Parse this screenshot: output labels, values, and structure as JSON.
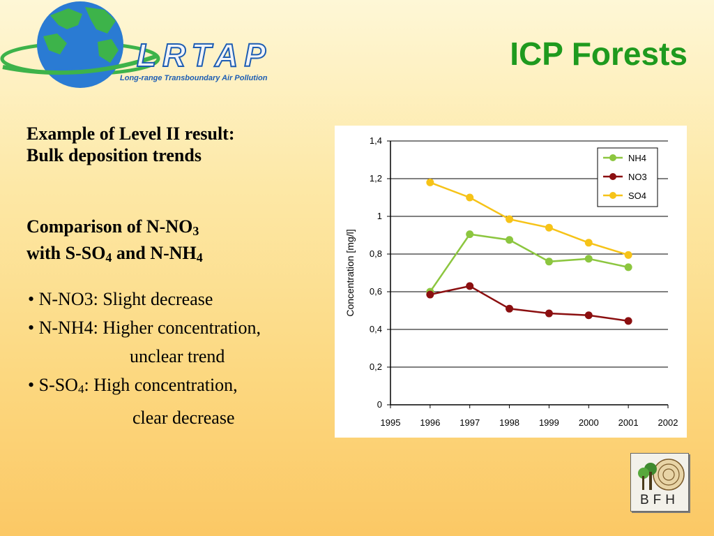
{
  "logo": {
    "name": "LRTAP",
    "tagline": "Long-range Transboundary Air Pollution",
    "colors": {
      "ocean": "#2a7bd3",
      "land": "#3db34a",
      "text": "#1d5db3"
    }
  },
  "title": "ICP Forests",
  "heading1": {
    "line1": "Example of Level II result:",
    "line2": "Bulk deposition trends"
  },
  "heading2": {
    "comparison": "Comparison of N-NO",
    "sub3": "3",
    "with": "with  S-SO",
    "sub4": "4",
    "and": " and N-NH",
    "sub4b": "4"
  },
  "bullets": {
    "b1": "•  N-NO3: Slight decrease",
    "b2": "•  N-NH4: Higher concentration,",
    "b2cont": "unclear trend",
    "b3a": "•  S-SO",
    "b3sub": "4",
    "b3b": ":   High concentration,",
    "b3cont": "clear decrease"
  },
  "bfh_logo": {
    "text": "BFH"
  },
  "chart_data": {
    "type": "line",
    "title": "",
    "xlabel": "",
    "ylabel": "Concentration [mg/l]",
    "x": [
      1996,
      1997,
      1998,
      1999,
      2000,
      2001
    ],
    "xlim": [
      1995,
      2002
    ],
    "xticks": [
      "1995",
      "1996",
      "1997",
      "1998",
      "1999",
      "2000",
      "2001",
      "2002"
    ],
    "ylim": [
      0,
      1.4
    ],
    "yticks": [
      "0",
      "0,2",
      "0,4",
      "0,6",
      "0,8",
      "1",
      "1,2",
      "1,4"
    ],
    "grid": "horizontal",
    "legend_position": "top-right",
    "series": [
      {
        "name": "NH4",
        "color": "#8cc63f",
        "values": [
          0.6,
          0.905,
          0.875,
          0.76,
          0.775,
          0.73
        ]
      },
      {
        "name": "NO3",
        "color": "#8b0f10",
        "values": [
          0.585,
          0.63,
          0.51,
          0.485,
          0.475,
          0.445
        ]
      },
      {
        "name": "SO4",
        "color": "#f6c318",
        "values": [
          1.18,
          1.1,
          0.985,
          0.94,
          0.86,
          0.795
        ]
      }
    ]
  }
}
